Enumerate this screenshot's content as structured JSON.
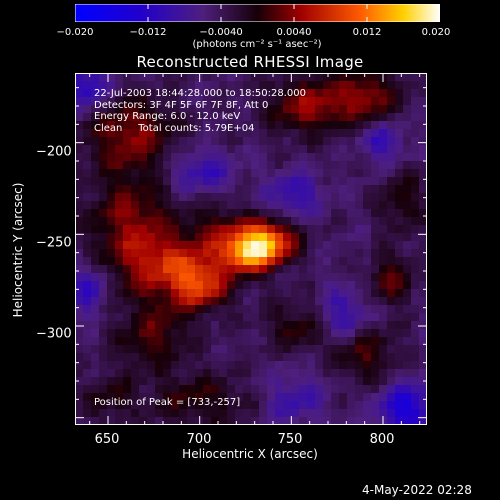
{
  "title": "Reconstructed RHESSI Image",
  "colorbar": {
    "ticks": [
      "−0.020",
      "−0.012",
      "−0.0040",
      "0.0040",
      "0.012",
      "0.020"
    ],
    "units": "(photons cm⁻² s⁻¹ asec⁻²)",
    "range": [
      -0.02,
      0.02
    ]
  },
  "info": {
    "time": "22-Jul-2003 18:44:28.000 to 18:50:28.000",
    "detectors": "Detectors: 3F 4F 5F 6F 7F 8F, Att 0",
    "energy": "Energy Range: 6.0 - 12.0 keV",
    "method": "Clean     Total counts: 5.79E+04"
  },
  "peak_label": "Position of Peak = [733,-257]",
  "timestamp": "4-May-2022 02:28",
  "chart_data": {
    "type": "heatmap",
    "title": "Reconstructed RHESSI Image",
    "xlabel": "Heliocentric X (arcsec)",
    "ylabel": "Heliocentric Y (arcsec)",
    "xlim": [
      632,
      824
    ],
    "ylim": [
      -354,
      -162
    ],
    "xticks": [
      "650",
      "700",
      "750",
      "800"
    ],
    "yticks": [
      "−200",
      "−250",
      "−300"
    ],
    "xtick_values": [
      650,
      700,
      750,
      800
    ],
    "ytick_values": [
      -200,
      -250,
      -300
    ],
    "peak": [
      733,
      -257
    ],
    "colorscale_range": [
      -0.02,
      0.02
    ],
    "blobs": [
      {
        "x": 735,
        "y": -255,
        "sx": 11,
        "sy": 8,
        "amp": 0.02
      },
      {
        "x": 725,
        "y": -262,
        "sx": 8,
        "sy": 6,
        "amp": 0.01
      },
      {
        "x": 690,
        "y": -268,
        "sx": 20,
        "sy": 12,
        "amp": 0.011
      },
      {
        "x": 700,
        "y": -280,
        "sx": 10,
        "sy": 8,
        "amp": 0.008
      },
      {
        "x": 712,
        "y": -248,
        "sx": 10,
        "sy": 9,
        "amp": 0.006
      },
      {
        "x": 663,
        "y": -245,
        "sx": 16,
        "sy": 20,
        "amp": 0.008
      },
      {
        "x": 662,
        "y": -195,
        "sx": 17,
        "sy": 14,
        "amp": 0.008
      },
      {
        "x": 675,
        "y": -305,
        "sx": 15,
        "sy": 13,
        "amp": 0.006
      },
      {
        "x": 758,
        "y": -180,
        "sx": 15,
        "sy": 11,
        "amp": 0.008
      },
      {
        "x": 790,
        "y": -175,
        "sx": 14,
        "sy": 10,
        "amp": 0.008
      },
      {
        "x": 810,
        "y": -232,
        "sx": 9,
        "sy": 12,
        "amp": 0.005
      },
      {
        "x": 805,
        "y": -275,
        "sx": 9,
        "sy": 10,
        "amp": 0.006
      },
      {
        "x": 755,
        "y": -300,
        "sx": 14,
        "sy": 10,
        "amp": 0.005
      },
      {
        "x": 790,
        "y": -315,
        "sx": 12,
        "sy": 12,
        "amp": 0.006
      },
      {
        "x": 700,
        "y": -340,
        "sx": 20,
        "sy": 10,
        "amp": 0.005
      },
      {
        "x": 650,
        "y": -340,
        "sx": 10,
        "sy": 10,
        "amp": 0.004
      },
      {
        "x": 700,
        "y": -215,
        "sx": 12,
        "sy": 8,
        "amp": -0.006
      },
      {
        "x": 752,
        "y": -228,
        "sx": 10,
        "sy": 8,
        "amp": -0.006
      },
      {
        "x": 778,
        "y": -295,
        "sx": 10,
        "sy": 10,
        "amp": -0.007
      },
      {
        "x": 812,
        "y": -345,
        "sx": 10,
        "sy": 10,
        "amp": -0.01
      },
      {
        "x": 800,
        "y": -200,
        "sx": 8,
        "sy": 8,
        "amp": -0.006
      },
      {
        "x": 640,
        "y": -280,
        "sx": 7,
        "sy": 10,
        "amp": -0.007
      },
      {
        "x": 640,
        "y": -170,
        "sx": 8,
        "sy": 8,
        "amp": -0.008
      },
      {
        "x": 752,
        "y": -340,
        "sx": 12,
        "sy": 10,
        "amp": -0.005
      }
    ]
  }
}
